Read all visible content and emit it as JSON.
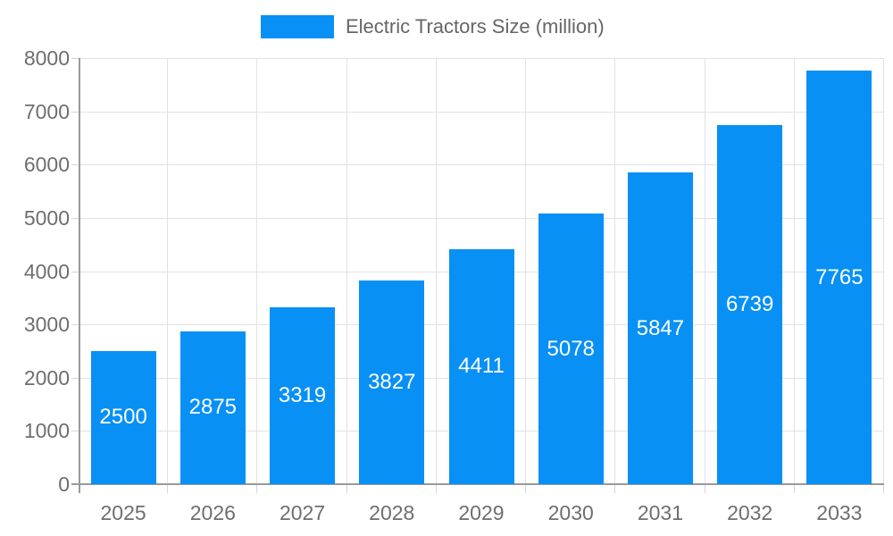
{
  "chart_data": {
    "type": "bar",
    "title": "Electric Tractors Size (million)",
    "legend": {
      "label": "Electric Tractors Size (million)",
      "position": "top-center"
    },
    "categories": [
      "2025",
      "2026",
      "2027",
      "2028",
      "2029",
      "2030",
      "2031",
      "2032",
      "2033"
    ],
    "series": [
      {
        "name": "Electric Tractors Size (million)",
        "values": [
          2500,
          2875,
          3319,
          3827,
          4411,
          5078,
          5847,
          6739,
          7765
        ]
      }
    ],
    "values": [
      2500,
      2875,
      3319,
      3827,
      4411,
      5078,
      5847,
      6739,
      7765
    ],
    "bar_value_labels": [
      "2500",
      "2875",
      "3319",
      "3827",
      "4411",
      "5078",
      "5847",
      "6739",
      "7765"
    ],
    "xlabel": "",
    "ylabel": "",
    "ylim": [
      0,
      8000
    ],
    "ytick_step": 1000,
    "yticks": [
      "0",
      "1000",
      "2000",
      "3000",
      "4000",
      "5000",
      "6000",
      "7000",
      "8000"
    ],
    "grid": true,
    "colors": {
      "bar": "#0890F5",
      "bar_label": "#FFFFFF",
      "axis_text": "#6E6E6E",
      "legend_text": "#666666",
      "grid_line": "#E2E2E2",
      "tick_line": "#D6D6D6",
      "axis_line": "#999999",
      "background": "#FFFFFF"
    }
  }
}
